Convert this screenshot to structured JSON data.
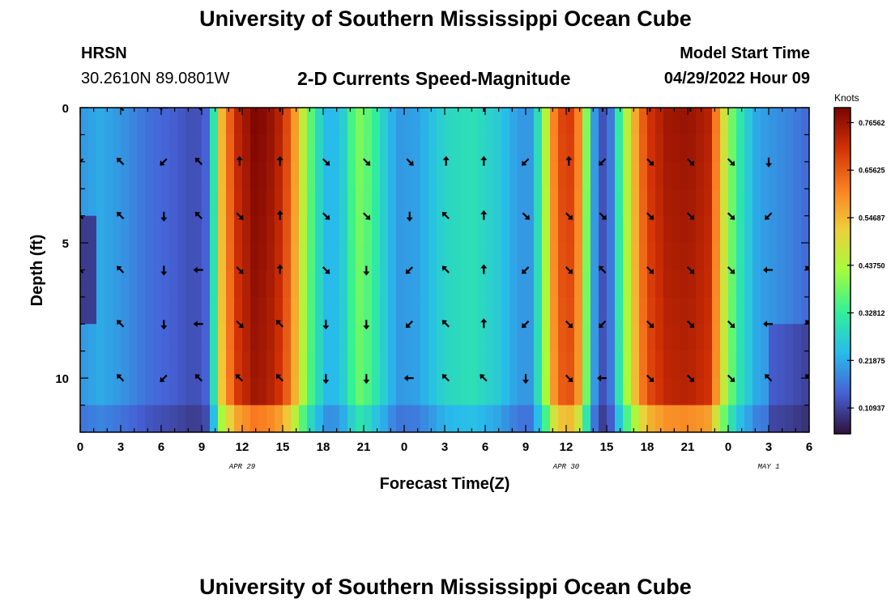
{
  "page_title": "University of Southern Mississippi Ocean Cube",
  "header": {
    "station": "HRSN",
    "coords": "30.2610N  89.0801W",
    "plot_title": "2-D Currents Speed-Magnitude",
    "model_label": "Model Start Time",
    "model_time": "04/29/2022 Hour 09"
  },
  "footer_title": "University of Southern Mississippi Ocean Cube",
  "chart_data": {
    "type": "heatmap",
    "title": "2-D Currents Speed-Magnitude",
    "xlabel": "Forecast Time(Z)",
    "ylabel": "Depth (ft)",
    "x_hours": [
      0,
      54
    ],
    "y_depth_ft": [
      0,
      12
    ],
    "x_ticks": [
      {
        "h": 0,
        "label": "0"
      },
      {
        "h": 3,
        "label": "3"
      },
      {
        "h": 6,
        "label": "6"
      },
      {
        "h": 9,
        "label": "9"
      },
      {
        "h": 12,
        "label": "12"
      },
      {
        "h": 15,
        "label": "15"
      },
      {
        "h": 18,
        "label": "18"
      },
      {
        "h": 21,
        "label": "21"
      },
      {
        "h": 24,
        "label": "0"
      },
      {
        "h": 27,
        "label": "3"
      },
      {
        "h": 30,
        "label": "6"
      },
      {
        "h": 33,
        "label": "9"
      },
      {
        "h": 36,
        "label": "12"
      },
      {
        "h": 39,
        "label": "15"
      },
      {
        "h": 42,
        "label": "18"
      },
      {
        "h": 45,
        "label": "21"
      },
      {
        "h": 48,
        "label": "0"
      },
      {
        "h": 51,
        "label": "3"
      },
      {
        "h": 54,
        "label": "6"
      }
    ],
    "date_labels": [
      {
        "h": 12,
        "label": "APR 29"
      },
      {
        "h": 36,
        "label": "APR 30"
      },
      {
        "h": 51,
        "label": "MAY 1"
      }
    ],
    "y_ticks": [
      {
        "d": 0,
        "label": "0"
      },
      {
        "d": 5,
        "label": "5"
      },
      {
        "d": 10,
        "label": "10"
      }
    ],
    "colorbar": {
      "label": "Knots",
      "min": 0.05,
      "max": 0.8,
      "ticks": [
        "0.76562",
        "0.65625",
        "0.54687",
        "0.43750",
        "0.32812",
        "0.21875",
        "0.10937"
      ],
      "tick_values": [
        0.76562,
        0.65625,
        0.54687,
        0.4375,
        0.32812,
        0.21875,
        0.10937
      ],
      "colors": [
        "#30123b",
        "#4661d6",
        "#28bceb",
        "#32f197",
        "#a4fc3c",
        "#eecf3a",
        "#fb8022",
        "#d23105",
        "#7a0403"
      ]
    },
    "speed_profile": {
      "hours": [
        0,
        1.5,
        3,
        5,
        7,
        8.5,
        9.5,
        10,
        10.5,
        11.5,
        13,
        14.5,
        15.5,
        16.5,
        17.5,
        18.5,
        19.5,
        20.5,
        21.5,
        22.5,
        23.5,
        25,
        27,
        29,
        31,
        32.5,
        33.5,
        34.3,
        35,
        36,
        36.8,
        37.5,
        38,
        38.5,
        39,
        39.5,
        40,
        41,
        42,
        43.5,
        45,
        46.5,
        47.3,
        48,
        49,
        50,
        51,
        52.5,
        54
      ],
      "knots": [
        0.2,
        0.22,
        0.2,
        0.16,
        0.14,
        0.12,
        0.15,
        0.35,
        0.55,
        0.72,
        0.8,
        0.76,
        0.66,
        0.46,
        0.3,
        0.22,
        0.27,
        0.4,
        0.36,
        0.27,
        0.2,
        0.21,
        0.28,
        0.3,
        0.26,
        0.2,
        0.2,
        0.38,
        0.6,
        0.72,
        0.65,
        0.4,
        0.22,
        0.13,
        0.12,
        0.2,
        0.35,
        0.55,
        0.7,
        0.76,
        0.77,
        0.74,
        0.58,
        0.42,
        0.3,
        0.22,
        0.2,
        0.18,
        0.15
      ]
    },
    "arrow_rows_ft": [
      0,
      2,
      4,
      6,
      8,
      10
    ],
    "arrow_cols_h": [
      0,
      3,
      6.2,
      8.8,
      11.8,
      14.8,
      18.2,
      21.2,
      24.4,
      27.1,
      29.9,
      33,
      36.2,
      38.7,
      42.2,
      45.2,
      48.2,
      51,
      54
    ],
    "arrow_dirs_deg": [
      [
        135,
        225,
        180,
        225,
        270,
        270,
        null,
        null,
        null,
        null,
        270,
        null,
        270,
        270,
        270,
        270,
        null,
        null,
        null
      ],
      [
        135,
        225,
        135,
        225,
        270,
        270,
        45,
        45,
        45,
        270,
        270,
        135,
        270,
        135,
        45,
        45,
        45,
        90,
        null
      ],
      [
        225,
        225,
        90,
        225,
        45,
        270,
        45,
        45,
        90,
        225,
        270,
        45,
        45,
        45,
        45,
        45,
        45,
        135,
        null
      ],
      [
        225,
        225,
        90,
        180,
        45,
        270,
        45,
        90,
        135,
        225,
        270,
        135,
        45,
        225,
        45,
        45,
        45,
        180,
        225
      ],
      [
        null,
        225,
        90,
        180,
        45,
        225,
        90,
        90,
        135,
        225,
        270,
        135,
        45,
        135,
        45,
        45,
        45,
        180,
        225
      ],
      [
        null,
        225,
        135,
        225,
        225,
        225,
        90,
        90,
        180,
        225,
        225,
        90,
        45,
        180,
        45,
        45,
        45,
        225,
        225
      ]
    ]
  }
}
